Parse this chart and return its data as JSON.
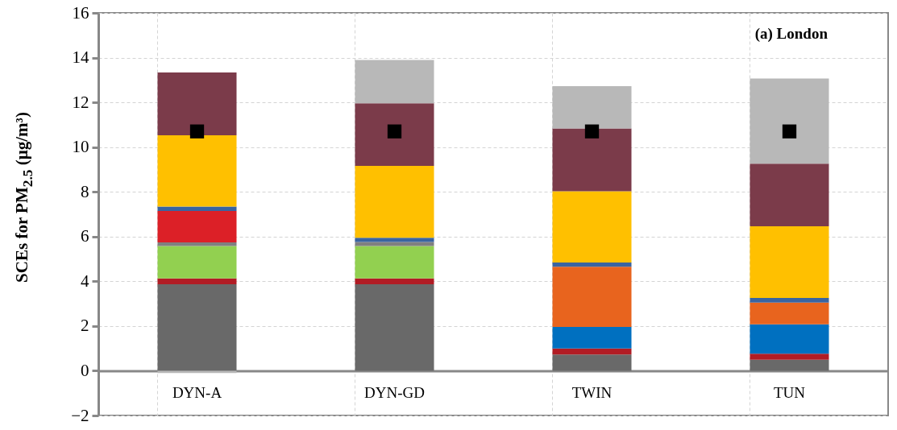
{
  "chart_data": {
    "type": "bar",
    "stacked": true,
    "ylabel": "SCEs for PM$_{2.5}$ (μg/m³)",
    "categories": [
      "DYN-A",
      "DYN-GD",
      "TWIN",
      "TUN"
    ],
    "series": [
      {
        "color": "#696969",
        "values": [
          3.87,
          3.87,
          0.73,
          0.49
        ]
      },
      {
        "color": "#b11c24",
        "values": [
          0.26,
          0.26,
          0.27,
          0.27
        ]
      },
      {
        "color": "#0070c0",
        "values": [
          0,
          0,
          0.96,
          1.32
        ]
      },
      {
        "color": "#e8641e",
        "values": [
          0,
          0,
          2.69,
          0.97
        ]
      },
      {
        "color": "#92d050",
        "values": [
          1.45,
          1.45,
          0,
          0
        ]
      },
      {
        "color": "#808080",
        "values": [
          0.16,
          0.18,
          0,
          0
        ]
      },
      {
        "color": "#dc2027",
        "values": [
          1.4,
          0,
          0,
          0
        ]
      },
      {
        "color": "#3a64a0",
        "values": [
          0.2,
          0.19,
          0.19,
          0.21
        ]
      },
      {
        "color": "#ffc000",
        "values": [
          3.19,
          3.21,
          3.19,
          3.2
        ]
      },
      {
        "color": "#7b3b4a",
        "values": [
          2.81,
          2.8,
          2.8,
          2.8
        ]
      },
      {
        "color": "#b8b8b8",
        "values": [
          -0.1,
          1.93,
          1.89,
          3.81
        ]
      },
      {
        "type": "scatter",
        "marker": "square",
        "color": "#000000",
        "x": [
          "DYN-A",
          "DYN-GD",
          "TWIN",
          "TUN"
        ],
        "values": [
          10.7,
          10.7,
          10.7,
          10.7
        ]
      }
    ],
    "ylim": [
      -2,
      16
    ],
    "yticks": [
      -2,
      0,
      2,
      4,
      6,
      8,
      10,
      12,
      14,
      16
    ],
    "grid": true,
    "annotations": [
      "(a) London"
    ]
  }
}
